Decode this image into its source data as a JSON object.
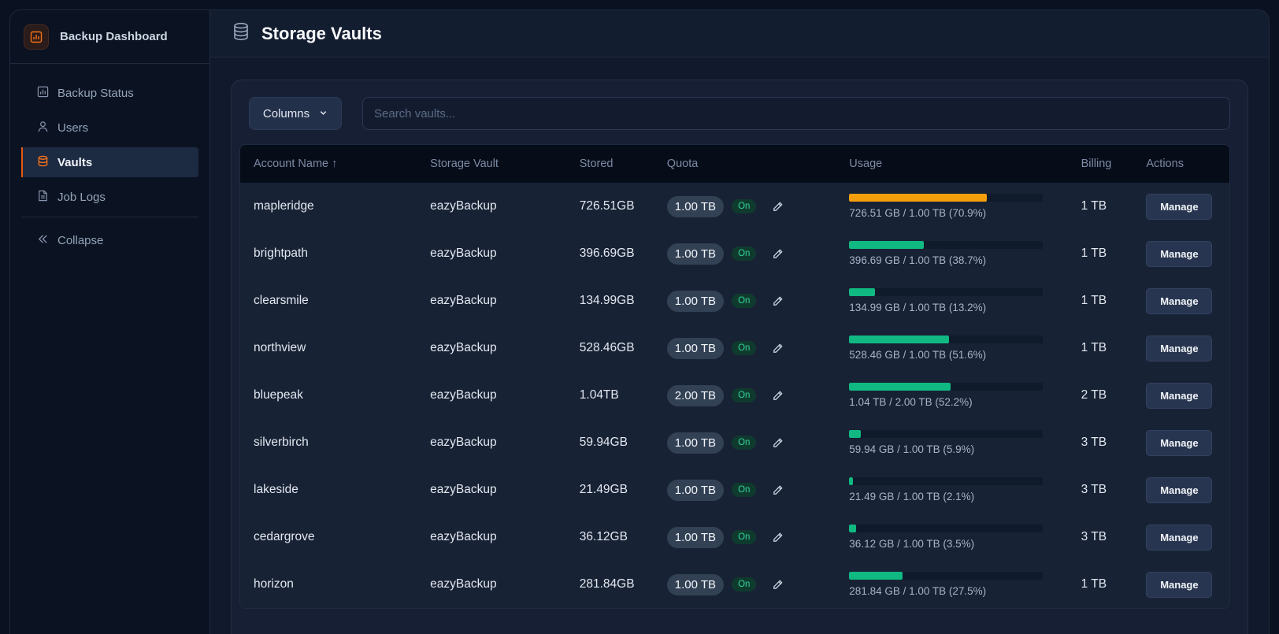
{
  "app": {
    "title": "Backup Dashboard"
  },
  "sidebar": {
    "items": [
      {
        "label": "Backup Status",
        "icon": "chart-icon"
      },
      {
        "label": "Users",
        "icon": "user-icon"
      },
      {
        "label": "Vaults",
        "icon": "database-icon",
        "active": true
      },
      {
        "label": "Job Logs",
        "icon": "document-icon"
      }
    ],
    "collapse_label": "Collapse"
  },
  "header": {
    "title": "Storage Vaults"
  },
  "toolbar": {
    "columns_label": "Columns",
    "search_placeholder": "Search vaults..."
  },
  "table": {
    "headers": {
      "account": "Account Name ↑",
      "vault": "Storage Vault",
      "stored": "Stored",
      "quota": "Quota",
      "usage": "Usage",
      "billing": "Billing",
      "actions": "Actions"
    },
    "on_label": "On",
    "manage_label": "Manage",
    "rows": [
      {
        "account": "mapleridge",
        "vault": "eazyBackup",
        "stored": "726.51GB",
        "quota": "1.00 TB",
        "usage_fraction": 0.709,
        "usage_text": "726.51 GB / 1.00 TB (70.9%)",
        "billing": "1 TB",
        "warn": true
      },
      {
        "account": "brightpath",
        "vault": "eazyBackup",
        "stored": "396.69GB",
        "quota": "1.00 TB",
        "usage_fraction": 0.387,
        "usage_text": "396.69 GB / 1.00 TB (38.7%)",
        "billing": "1 TB"
      },
      {
        "account": "clearsmile",
        "vault": "eazyBackup",
        "stored": "134.99GB",
        "quota": "1.00 TB",
        "usage_fraction": 0.132,
        "usage_text": "134.99 GB / 1.00 TB (13.2%)",
        "billing": "1 TB"
      },
      {
        "account": "northview",
        "vault": "eazyBackup",
        "stored": "528.46GB",
        "quota": "1.00 TB",
        "usage_fraction": 0.516,
        "usage_text": "528.46 GB / 1.00 TB (51.6%)",
        "billing": "1 TB"
      },
      {
        "account": "bluepeak",
        "vault": "eazyBackup",
        "stored": "1.04TB",
        "quota": "2.00 TB",
        "usage_fraction": 0.522,
        "usage_text": "1.04 TB / 2.00 TB (52.2%)",
        "billing": "2 TB"
      },
      {
        "account": "silverbirch",
        "vault": "eazyBackup",
        "stored": "59.94GB",
        "quota": "1.00 TB",
        "usage_fraction": 0.059,
        "usage_text": "59.94 GB / 1.00 TB (5.9%)",
        "billing": "3 TB"
      },
      {
        "account": "lakeside",
        "vault": "eazyBackup",
        "stored": "21.49GB",
        "quota": "1.00 TB",
        "usage_fraction": 0.021,
        "usage_text": "21.49 GB / 1.00 TB (2.1%)",
        "billing": "3 TB"
      },
      {
        "account": "cedargrove",
        "vault": "eazyBackup",
        "stored": "36.12GB",
        "quota": "1.00 TB",
        "usage_fraction": 0.035,
        "usage_text": "36.12 GB / 1.00 TB (3.5%)",
        "billing": "3 TB"
      },
      {
        "account": "horizon",
        "vault": "eazyBackup",
        "stored": "281.84GB",
        "quota": "1.00 TB",
        "usage_fraction": 0.275,
        "usage_text": "281.84 GB / 1.00 TB (27.5%)",
        "billing": "1 TB"
      }
    ]
  },
  "colors": {
    "accent": "#ea580c",
    "ok": "#10b981",
    "warn": "#f59e0b"
  }
}
